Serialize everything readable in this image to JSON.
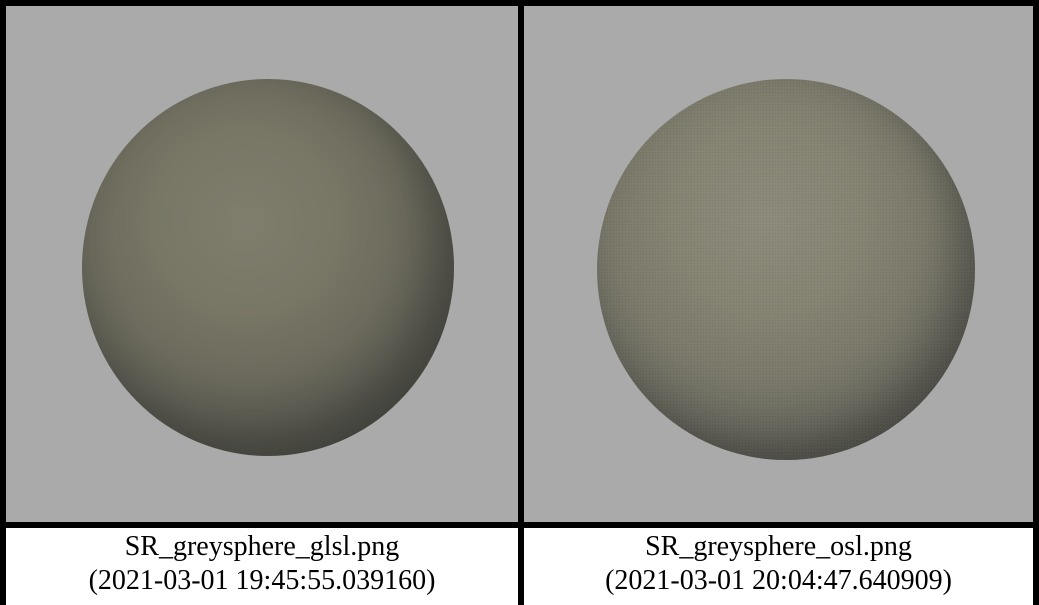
{
  "panels": [
    {
      "filename": "SR_greysphere_glsl.png",
      "timestamp": "(2021-03-01 19:45:55.039160)"
    },
    {
      "filename": "SR_greysphere_osl.png",
      "timestamp": "(2021-03-01 20:04:47.640909)"
    }
  ],
  "colors": {
    "frame": "#000000",
    "background": "#aaaaaa",
    "caption_background": "#ffffff"
  }
}
